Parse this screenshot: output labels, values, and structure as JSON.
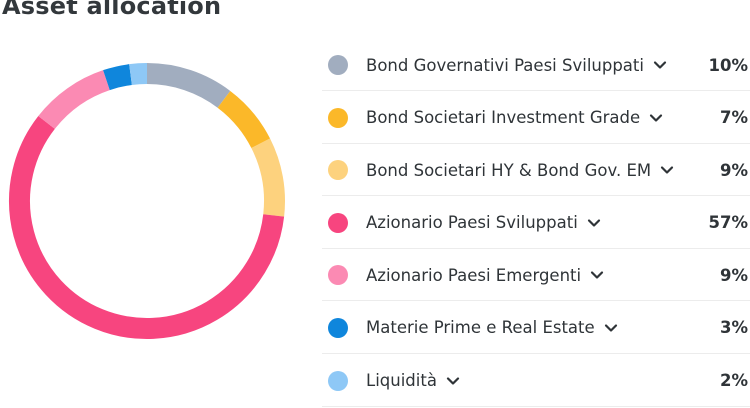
{
  "header": {
    "title": "Asset allocation"
  },
  "chart_data": {
    "type": "pie",
    "title": "Asset allocation",
    "unit": "%",
    "categories": [
      "Bond Governativi Paesi Sviluppati",
      "Bond Societari Investment Grade",
      "Bond Societari HY & Bond Gov. EM",
      "Azionario Paesi Sviluppati",
      "Azionario Paesi Emergenti",
      "Materie Prime e Real Estate",
      "Liquidità"
    ],
    "values": [
      10,
      7,
      9,
      57,
      9,
      3,
      2
    ],
    "labels": [
      "10%",
      "7%",
      "9%",
      "57%",
      "9%",
      "3%",
      "2%"
    ],
    "colors": [
      "#a1adbf",
      "#fbb829",
      "#fdd27e",
      "#f7457f",
      "#fb8ab3",
      "#0f86dc",
      "#8ec8f6"
    ],
    "legend_position": "right",
    "donut": true
  },
  "icons": {
    "expand": "chevron-down-icon"
  }
}
